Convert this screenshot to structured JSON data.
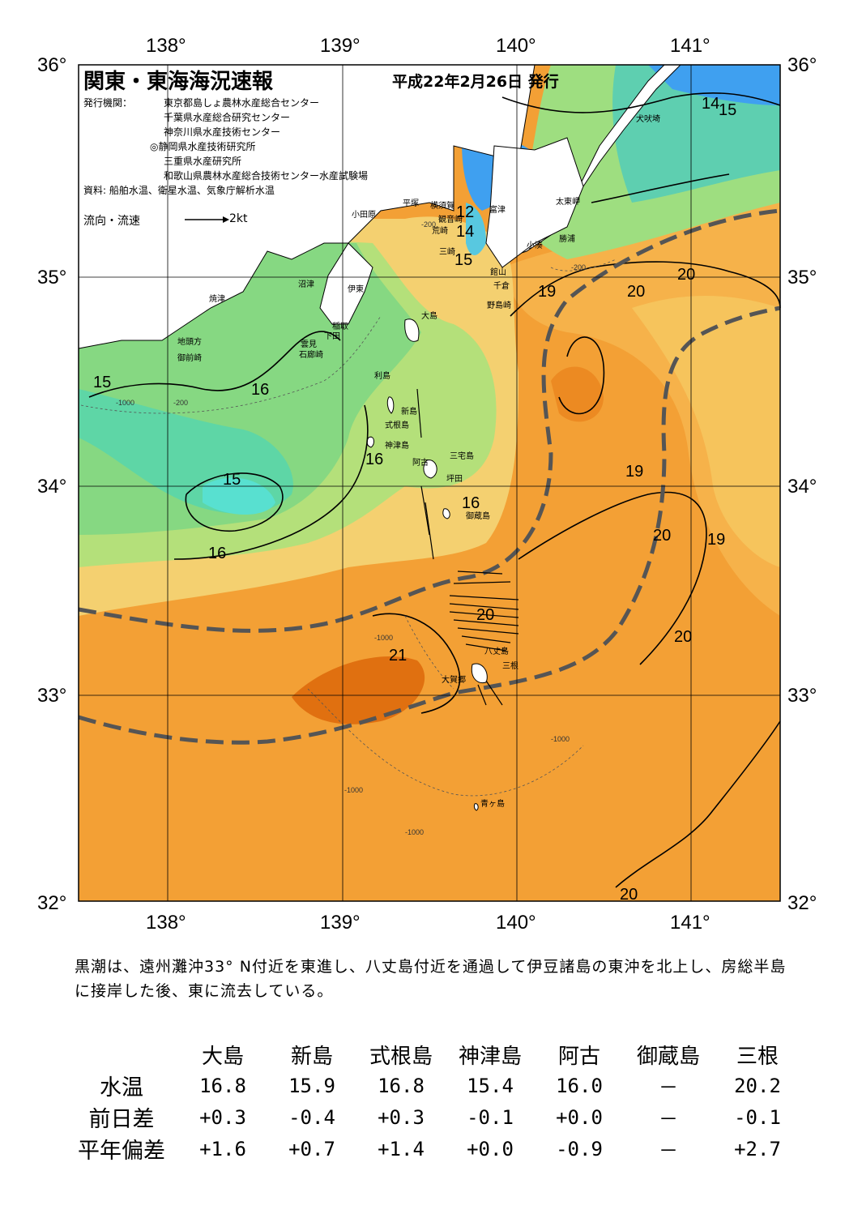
{
  "header": {
    "title": "関東・東海海況速報",
    "date": "平成22年2月26日 発行",
    "issuer_label": "発行機関：",
    "issuers": [
      "東京都島しょ農林水産総合センター",
      "千葉県水産総合研究センター",
      "神奈川県水産技術センター",
      "◎静岡県水産技術研究所",
      "三重県水産研究所",
      "和歌山県農林水産総合技術センター水産試験場"
    ],
    "sources": "資料: 船舶水温、衛星水温、気象庁解析水温",
    "flow_label": "流向・流速",
    "flow_unit": "2kt"
  },
  "map": {
    "lon_labels": [
      "138°",
      "139°",
      "140°",
      "141°"
    ],
    "lat_labels": [
      "36°",
      "35°",
      "34°",
      "33°",
      "32°"
    ],
    "place_names": [
      "犬吠埼",
      "太東岬",
      "勝浦",
      "小湊",
      "富津",
      "横須賀",
      "観音崎",
      "荒崎",
      "三崎",
      "館山",
      "千倉",
      "野島崎",
      "平塚",
      "小田原",
      "沼津",
      "伊東",
      "焼津",
      "稲取",
      "下田",
      "雲見",
      "石廊崎",
      "地頭方",
      "御前崎",
      "大島",
      "利島",
      "新島",
      "式根島",
      "神津島",
      "三宅島",
      "阿古",
      "坪田",
      "御蔵島",
      "八丈島",
      "三根",
      "大賀郷",
      "青ヶ島"
    ],
    "isotherm_labels": [
      "12",
      "14",
      "14",
      "15",
      "15",
      "15",
      "16",
      "16",
      "16",
      "15",
      "16",
      "19",
      "20",
      "20",
      "19",
      "20",
      "19",
      "20",
      "20",
      "21",
      "20"
    ],
    "depth_labels": [
      "-200",
      "-1000"
    ],
    "kuroshio": "Kuroshio axis shown as thick dashed line",
    "colors": {
      "cold": "#3fa0f0",
      "cool": "#58d2a0",
      "mid": "#98de80",
      "warm": "#f4d070",
      "hot": "#f3a035",
      "hottest": "#e07010",
      "kuroshio": "#555555"
    }
  },
  "summary": "黒潮は、遠州灘沖33° N付近を東進し、八丈島付近を通過して伊豆諸島の東沖を北上し、房総半島に接岸した後、東に流去している。",
  "table": {
    "stations": [
      "大島",
      "新島",
      "式根島",
      "神津島",
      "阿古",
      "御蔵島",
      "三根"
    ],
    "rows": [
      {
        "label": "水温",
        "values": [
          "16.8",
          "15.9",
          "16.8",
          "15.4",
          "16.0",
          "－",
          "20.2"
        ]
      },
      {
        "label": "前日差",
        "values": [
          "+0.3",
          "-0.4",
          "+0.3",
          "-0.1",
          "+0.0",
          "－",
          "-0.1"
        ]
      },
      {
        "label": "平年偏差",
        "values": [
          "+1.6",
          "+0.7",
          "+1.4",
          "+0.0",
          "-0.9",
          "－",
          "+2.7"
        ]
      }
    ]
  }
}
